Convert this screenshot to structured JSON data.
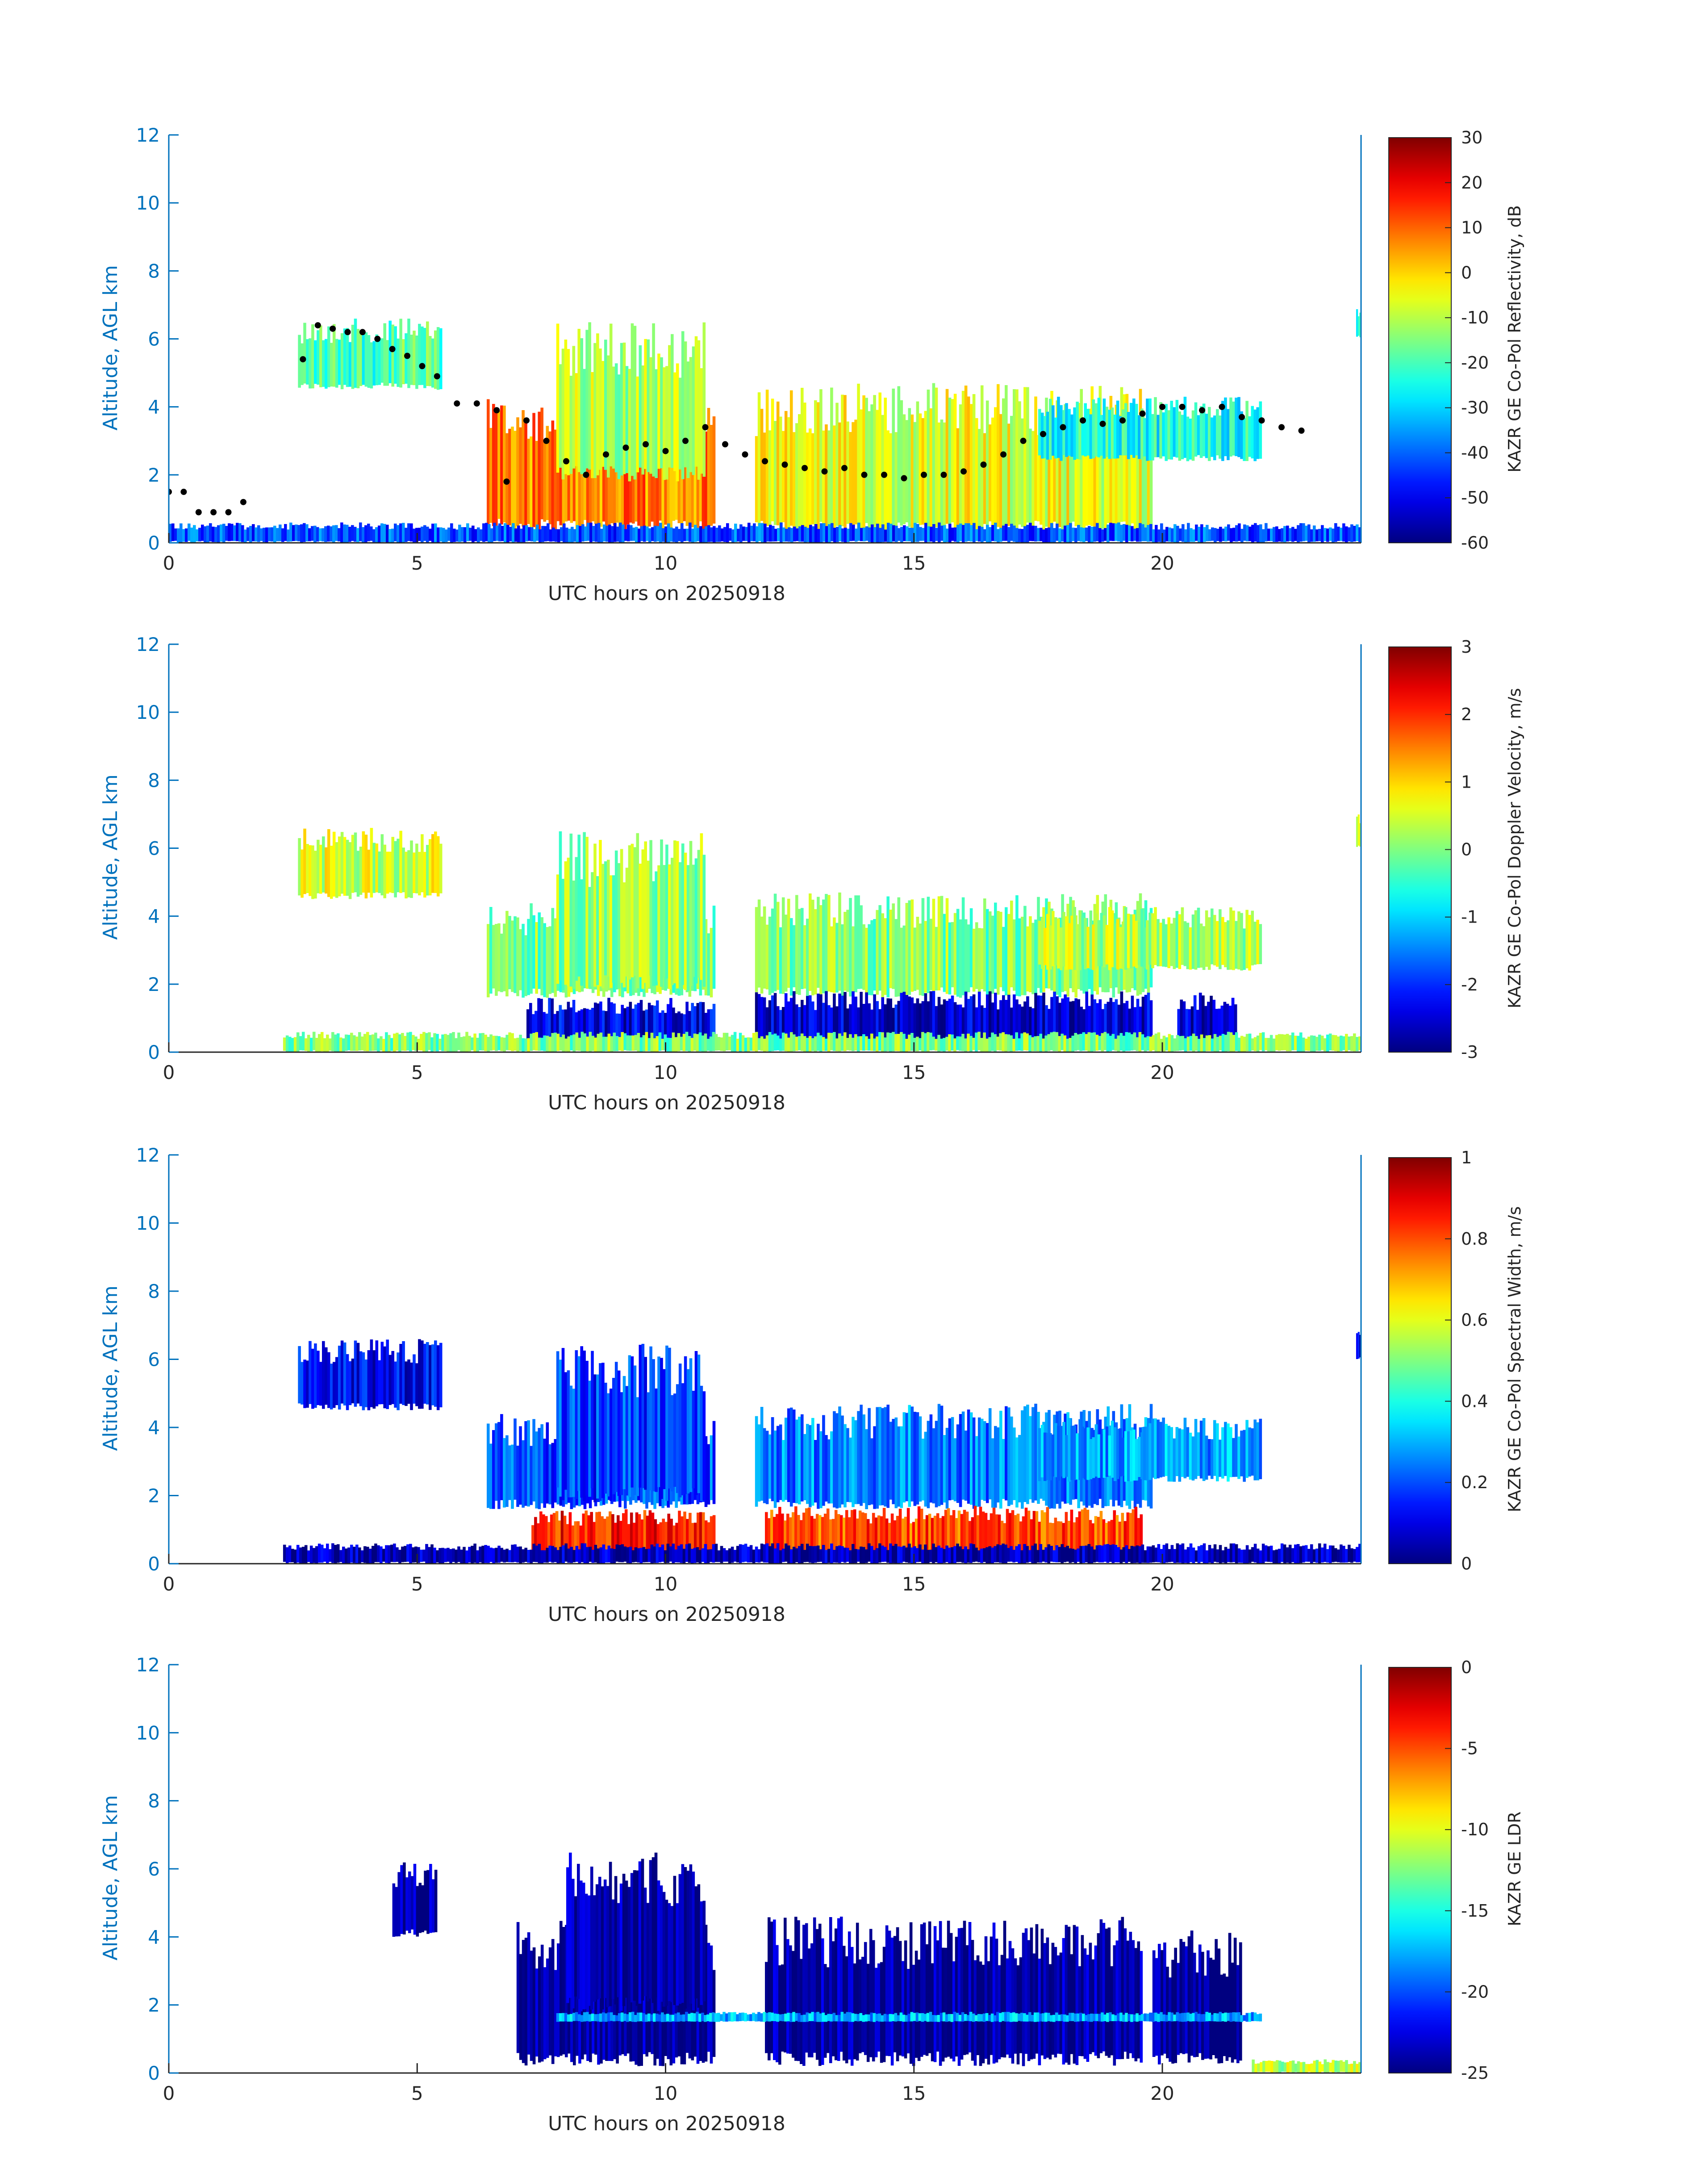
{
  "colors": {
    "axis_blue": "#0072bd",
    "text_dark": "#262626",
    "jet": [
      "#00008f",
      "#0000ff",
      "#0080ff",
      "#00ffff",
      "#80ff80",
      "#ffff00",
      "#ff8000",
      "#ff0000",
      "#800000"
    ],
    "point_marker": "#000000"
  },
  "chart_data": [
    {
      "type": "heatmap",
      "title": "",
      "xlabel": "UTC hours on 20250918",
      "ylabel": "Altitude, AGL km",
      "xlim": [
        0,
        24
      ],
      "ylim": [
        0,
        12
      ],
      "x_ticks": [
        "0",
        "5",
        "10",
        "15",
        "20"
      ],
      "y_ticks": [
        "0",
        "2",
        "4",
        "6",
        "8",
        "10",
        "12"
      ],
      "colorbar": {
        "label": "KAZR GE Co-Pol Reflectivity, dB",
        "range": [
          -60,
          30
        ],
        "ticks": [
          "30",
          "20",
          "10",
          "0",
          "-10",
          "-20",
          "-30",
          "-40",
          "-50",
          "-60"
        ]
      },
      "cloud_layers": [
        {
          "x": [
            2.6,
            5.5
          ],
          "y": [
            4.5,
            6.6
          ],
          "level": 0.45
        },
        {
          "x": [
            6.4,
            11.0
          ],
          "y": [
            0.3,
            4.4
          ],
          "level": 0.75
        },
        {
          "x": [
            7.8,
            10.8
          ],
          "y": [
            1.8,
            6.5
          ],
          "level": 0.55
        },
        {
          "x": [
            11.8,
            19.8
          ],
          "y": [
            0.2,
            4.7
          ],
          "level": 0.6
        },
        {
          "x": [
            17.5,
            22.0
          ],
          "y": [
            2.4,
            4.3
          ],
          "level": 0.4
        },
        {
          "x": [
            0.0,
            24.0
          ],
          "y": [
            0.0,
            0.6
          ],
          "level": 0.2
        },
        {
          "x": [
            23.9,
            24.0
          ],
          "y": [
            6.0,
            7.0
          ],
          "level": 0.45
        }
      ],
      "overlay_points": {
        "name": "",
        "color": "#000000",
        "x": [
          0.0,
          0.3,
          0.6,
          0.9,
          1.2,
          1.5,
          2.7,
          3.0,
          3.3,
          3.6,
          3.9,
          4.2,
          4.5,
          4.8,
          5.1,
          5.4,
          5.8,
          6.2,
          6.6,
          6.8,
          7.2,
          7.6,
          8.0,
          8.4,
          8.8,
          9.2,
          9.6,
          10.0,
          10.4,
          10.8,
          11.2,
          11.6,
          12.0,
          12.4,
          12.8,
          13.2,
          13.6,
          14.0,
          14.4,
          14.8,
          15.2,
          15.6,
          16.0,
          16.4,
          16.8,
          17.2,
          17.6,
          18.0,
          18.4,
          18.8,
          19.2,
          19.6,
          20.0,
          20.4,
          20.8,
          21.2,
          21.6,
          22.0,
          22.4,
          22.8
        ],
        "y": [
          1.5,
          1.5,
          0.9,
          0.9,
          0.9,
          1.2,
          5.4,
          6.4,
          6.3,
          6.2,
          6.2,
          6.0,
          5.7,
          5.5,
          5.2,
          4.9,
          4.1,
          4.1,
          3.9,
          1.8,
          3.6,
          3.0,
          2.4,
          2.0,
          2.6,
          2.8,
          2.9,
          2.7,
          3.0,
          3.4,
          2.9,
          2.6,
          2.4,
          2.3,
          2.2,
          2.1,
          2.2,
          2.0,
          2.0,
          1.9,
          2.0,
          2.0,
          2.1,
          2.3,
          2.6,
          3.0,
          3.2,
          3.4,
          3.6,
          3.5,
          3.6,
          3.8,
          4.0,
          4.0,
          3.9,
          4.0,
          3.7,
          3.6,
          3.4,
          3.3
        ]
      }
    },
    {
      "type": "heatmap",
      "title": "",
      "xlabel": "UTC hours on 20250918",
      "ylabel": "Altitude, AGL km",
      "xlim": [
        0,
        24
      ],
      "ylim": [
        0,
        12
      ],
      "x_ticks": [
        "0",
        "5",
        "10",
        "15",
        "20"
      ],
      "y_ticks": [
        "0",
        "2",
        "4",
        "6",
        "8",
        "10",
        "12"
      ],
      "colorbar": {
        "label": "KAZR GE Co-Pol Doppler Velocity, m/s",
        "range": [
          -3,
          3
        ],
        "ticks": [
          "3",
          "2",
          "1",
          "0",
          "-1",
          "-2",
          "-3"
        ]
      },
      "cloud_layers": [
        {
          "x": [
            2.6,
            5.5
          ],
          "y": [
            4.5,
            6.6
          ],
          "level": 0.58
        },
        {
          "x": [
            6.4,
            11.0
          ],
          "y": [
            1.6,
            4.4
          ],
          "level": 0.5
        },
        {
          "x": [
            7.8,
            10.8
          ],
          "y": [
            1.8,
            6.5
          ],
          "level": 0.52
        },
        {
          "x": [
            11.8,
            19.8
          ],
          "y": [
            1.6,
            4.7
          ],
          "level": 0.5
        },
        {
          "x": [
            17.5,
            22.0
          ],
          "y": [
            2.4,
            4.3
          ],
          "level": 0.55
        },
        {
          "x": [
            7.2,
            11.0
          ],
          "y": [
            0.2,
            1.6
          ],
          "level": 0.1
        },
        {
          "x": [
            11.8,
            19.8
          ],
          "y": [
            0.2,
            1.8
          ],
          "level": 0.08
        },
        {
          "x": [
            20.3,
            21.5
          ],
          "y": [
            0.2,
            1.8
          ],
          "level": 0.08
        },
        {
          "x": [
            2.3,
            24.0
          ],
          "y": [
            0.0,
            0.6
          ],
          "level": 0.5
        },
        {
          "x": [
            23.9,
            24.0
          ],
          "y": [
            6.0,
            7.0
          ],
          "level": 0.58
        }
      ]
    },
    {
      "type": "heatmap",
      "title": "",
      "xlabel": "UTC hours on 20250918",
      "ylabel": "Altitude, AGL km",
      "xlim": [
        0,
        24
      ],
      "ylim": [
        0,
        12
      ],
      "x_ticks": [
        "0",
        "5",
        "10",
        "15",
        "20"
      ],
      "y_ticks": [
        "0",
        "2",
        "4",
        "6",
        "8",
        "10",
        "12"
      ],
      "colorbar": {
        "label": "KAZR GE Co-Pol Spectral Width, m/s",
        "range": [
          0,
          1
        ],
        "ticks": [
          "1",
          "0.8",
          "0.6",
          "0.4",
          "0.2",
          "0"
        ]
      },
      "cloud_layers": [
        {
          "x": [
            2.6,
            5.5
          ],
          "y": [
            4.5,
            6.6
          ],
          "level": 0.12
        },
        {
          "x": [
            6.4,
            11.0
          ],
          "y": [
            1.6,
            4.4
          ],
          "level": 0.2
        },
        {
          "x": [
            7.8,
            10.8
          ],
          "y": [
            1.8,
            6.5
          ],
          "level": 0.18
        },
        {
          "x": [
            11.8,
            19.8
          ],
          "y": [
            1.6,
            4.7
          ],
          "level": 0.25
        },
        {
          "x": [
            17.5,
            22.0
          ],
          "y": [
            2.4,
            4.3
          ],
          "level": 0.28
        },
        {
          "x": [
            7.3,
            11.0
          ],
          "y": [
            0.2,
            1.6
          ],
          "level": 0.85
        },
        {
          "x": [
            12.0,
            19.6
          ],
          "y": [
            0.2,
            1.7
          ],
          "level": 0.8
        },
        {
          "x": [
            2.3,
            24.0
          ],
          "y": [
            0.0,
            0.6
          ],
          "level": 0.05
        },
        {
          "x": [
            23.9,
            24.0
          ],
          "y": [
            6.0,
            7.0
          ],
          "level": 0.12
        }
      ]
    },
    {
      "type": "heatmap",
      "title": "",
      "xlabel": "UTC hours on 20250918",
      "ylabel": "Altitude, AGL km",
      "xlim": [
        0,
        24
      ],
      "ylim": [
        0,
        12
      ],
      "x_ticks": [
        "0",
        "5",
        "10",
        "15",
        "20"
      ],
      "y_ticks": [
        "0",
        "2",
        "4",
        "6",
        "8",
        "10",
        "12"
      ],
      "colorbar": {
        "label": "KAZR GE LDR",
        "range": [
          -25,
          0
        ],
        "ticks": [
          "0",
          "-5",
          "-10",
          "-15",
          "-20",
          "-25"
        ]
      },
      "cloud_layers": [
        {
          "x": [
            4.5,
            5.4
          ],
          "y": [
            4.0,
            6.2
          ],
          "level": 0.02
        },
        {
          "x": [
            7.0,
            11.0
          ],
          "y": [
            0.2,
            4.5
          ],
          "level": 0.02
        },
        {
          "x": [
            8.0,
            10.8
          ],
          "y": [
            1.8,
            6.5
          ],
          "level": 0.02
        },
        {
          "x": [
            12.0,
            19.6
          ],
          "y": [
            0.2,
            4.6
          ],
          "level": 0.02
        },
        {
          "x": [
            19.8,
            21.6
          ],
          "y": [
            0.2,
            4.2
          ],
          "level": 0.02
        },
        {
          "x": [
            7.8,
            22.0
          ],
          "y": [
            1.5,
            1.8
          ],
          "level": 0.3
        },
        {
          "x": [
            21.8,
            24.0
          ],
          "y": [
            0.0,
            0.4
          ],
          "level": 0.55
        }
      ]
    }
  ]
}
